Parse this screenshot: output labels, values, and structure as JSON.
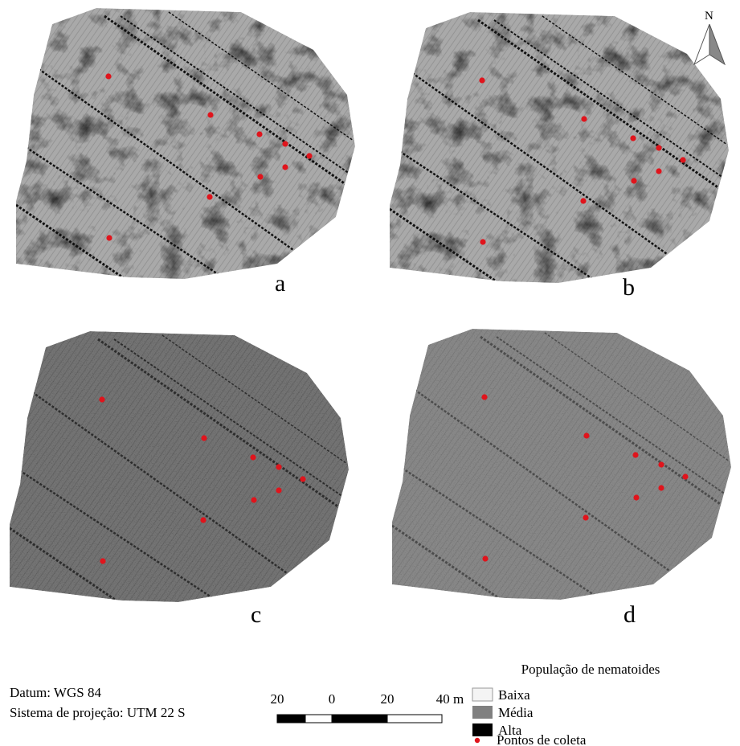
{
  "panels": [
    {
      "label": "a"
    },
    {
      "label": "b"
    },
    {
      "label": "c"
    },
    {
      "label": "d"
    }
  ],
  "north": "N",
  "legend": {
    "title": "População de nematoides",
    "items": [
      "Baixa",
      "Média",
      "Alta",
      "Pontos de coleta"
    ]
  },
  "datum": [
    "Datum: WGS 84",
    "Sistema de projeção: UTM 22 S"
  ],
  "scale": {
    "labels": [
      "20",
      "0",
      "20",
      "40 m"
    ]
  }
}
